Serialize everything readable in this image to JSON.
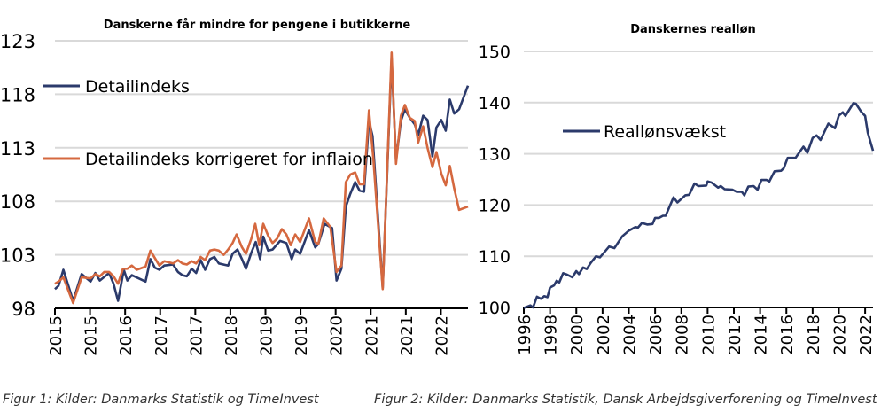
{
  "colors": {
    "navy": "#2b3a6b",
    "orange": "#d5683f",
    "grid": "#d9d9d9"
  },
  "chart_data": [
    {
      "type": "line",
      "title": "Danskerne får mindre for pengene i butikkerne",
      "xlabel": "",
      "ylabel": "",
      "x_units": "months since start of 2015",
      "xlim": [
        0,
        93
      ],
      "ylim": [
        98,
        123
      ],
      "yticks": [
        98,
        103,
        108,
        113,
        118,
        123
      ],
      "xtick_step_months": 7.9,
      "xtick_labels": [
        "2015",
        "2015",
        "2016",
        "2017",
        "2017",
        "2018",
        "2019",
        "2019",
        "2020",
        "2021",
        "2021",
        "2022"
      ],
      "grid": true,
      "legend": "top-left",
      "caption": "Figur 1: Kilder: Danmarks Statistik og TimeInvest",
      "series": [
        {
          "name": "Detailindeks",
          "color": "#2b3a6b",
          "points": [
            [
              0,
              99.8
            ],
            [
              0.8,
              100.1
            ],
            [
              1.9,
              101.6
            ],
            [
              4.1,
              98.7
            ],
            [
              6.0,
              101.2
            ],
            [
              8.0,
              100.5
            ],
            [
              9.1,
              101.3
            ],
            [
              10.1,
              100.6
            ],
            [
              12.2,
              101.3
            ],
            [
              13.2,
              100.3
            ],
            [
              14.2,
              98.7
            ],
            [
              15.5,
              101.6
            ],
            [
              16.3,
              100.6
            ],
            [
              17.3,
              101.1
            ],
            [
              19.4,
              100.7
            ],
            [
              20.4,
              100.5
            ],
            [
              21.5,
              102.6
            ],
            [
              22.5,
              101.8
            ],
            [
              23.5,
              101.6
            ],
            [
              24.6,
              102.0
            ],
            [
              26.6,
              102.1
            ],
            [
              27.7,
              101.4
            ],
            [
              28.7,
              101.1
            ],
            [
              29.7,
              101.0
            ],
            [
              30.8,
              101.7
            ],
            [
              31.8,
              101.3
            ],
            [
              32.8,
              102.5
            ],
            [
              33.8,
              101.6
            ],
            [
              34.9,
              102.6
            ],
            [
              35.9,
              102.8
            ],
            [
              36.9,
              102.2
            ],
            [
              39.0,
              102.0
            ],
            [
              40.0,
              103.1
            ],
            [
              41.1,
              103.5
            ],
            [
              42.1,
              102.6
            ],
            [
              43.0,
              101.7
            ],
            [
              44.2,
              103.2
            ],
            [
              45.2,
              104.2
            ],
            [
              46.2,
              102.6
            ],
            [
              46.9,
              104.7
            ],
            [
              48.0,
              103.4
            ],
            [
              49.0,
              103.5
            ],
            [
              50.7,
              104.3
            ],
            [
              52.1,
              104.1
            ],
            [
              53.3,
              102.6
            ],
            [
              54.1,
              103.5
            ],
            [
              55.2,
              103.1
            ],
            [
              57.2,
              105.3
            ],
            [
              58.6,
              103.7
            ],
            [
              59.3,
              104.0
            ],
            [
              60.7,
              105.9
            ],
            [
              62.4,
              105.5
            ],
            [
              63.4,
              100.6
            ],
            [
              64.5,
              101.7
            ],
            [
              65.5,
              107.5
            ],
            [
              66.5,
              108.7
            ],
            [
              67.6,
              109.8
            ],
            [
              68.6,
              109.0
            ],
            [
              69.6,
              108.9
            ],
            [
              70.7,
              115.5
            ],
            [
              71.5,
              114.1
            ],
            [
              73.8,
              99.9
            ],
            [
              75.8,
              121.3
            ],
            [
              76.8,
              111.8
            ],
            [
              77.9,
              115.5
            ],
            [
              78.8,
              116.6
            ],
            [
              79.9,
              115.8
            ],
            [
              81.0,
              115.2
            ],
            [
              81.8,
              114.2
            ],
            [
              82.9,
              116.0
            ],
            [
              83.9,
              115.6
            ],
            [
              85.0,
              112.2
            ],
            [
              85.9,
              114.9
            ],
            [
              87.0,
              115.6
            ],
            [
              88.0,
              114.6
            ],
            [
              88.9,
              117.5
            ],
            [
              89.9,
              116.2
            ],
            [
              91.0,
              116.6
            ],
            [
              93.0,
              118.8
            ]
          ]
        },
        {
          "name": "Detailindeks korrigeret for inflaion",
          "color": "#d5683f",
          "points": [
            [
              0,
              100.3
            ],
            [
              0.8,
              100.5
            ],
            [
              1.9,
              100.9
            ],
            [
              4.1,
              98.5
            ],
            [
              6.0,
              100.9
            ],
            [
              8.0,
              100.8
            ],
            [
              9.1,
              101.2
            ],
            [
              10.1,
              101.0
            ],
            [
              11.1,
              101.4
            ],
            [
              12.2,
              101.4
            ],
            [
              13.2,
              101.0
            ],
            [
              14.2,
              100.3
            ],
            [
              15.3,
              101.7
            ],
            [
              16.3,
              101.7
            ],
            [
              17.3,
              102.0
            ],
            [
              18.4,
              101.6
            ],
            [
              20.4,
              101.9
            ],
            [
              21.5,
              103.4
            ],
            [
              22.5,
              102.7
            ],
            [
              23.5,
              102.0
            ],
            [
              24.6,
              102.4
            ],
            [
              26.6,
              102.2
            ],
            [
              27.7,
              102.5
            ],
            [
              28.7,
              102.2
            ],
            [
              29.7,
              102.1
            ],
            [
              30.8,
              102.4
            ],
            [
              31.8,
              102.2
            ],
            [
              32.8,
              102.8
            ],
            [
              33.8,
              102.5
            ],
            [
              34.9,
              103.4
            ],
            [
              35.9,
              103.5
            ],
            [
              36.9,
              103.4
            ],
            [
              38.0,
              103.0
            ],
            [
              39.0,
              103.5
            ],
            [
              40.0,
              104.1
            ],
            [
              40.9,
              104.9
            ],
            [
              42.1,
              103.7
            ],
            [
              43.0,
              103.1
            ],
            [
              44.2,
              104.5
            ],
            [
              45.1,
              105.9
            ],
            [
              46.0,
              103.9
            ],
            [
              46.9,
              105.9
            ],
            [
              48.0,
              104.8
            ],
            [
              49.0,
              104.1
            ],
            [
              50.0,
              104.5
            ],
            [
              51.1,
              105.4
            ],
            [
              52.1,
              104.9
            ],
            [
              53.1,
              103.9
            ],
            [
              54.1,
              104.9
            ],
            [
              55.2,
              104.2
            ],
            [
              57.2,
              106.4
            ],
            [
              58.6,
              104.2
            ],
            [
              59.3,
              104.0
            ],
            [
              60.5,
              106.4
            ],
            [
              62.0,
              105.6
            ],
            [
              63.4,
              101.4
            ],
            [
              64.5,
              102.0
            ],
            [
              65.5,
              109.8
            ],
            [
              66.5,
              110.5
            ],
            [
              67.6,
              110.7
            ],
            [
              68.6,
              109.6
            ],
            [
              69.6,
              109.6
            ],
            [
              70.7,
              116.5
            ],
            [
              71.7,
              111.9
            ],
            [
              73.8,
              99.8
            ],
            [
              75.8,
              121.9
            ],
            [
              76.8,
              111.5
            ],
            [
              77.9,
              116.0
            ],
            [
              78.8,
              117.0
            ],
            [
              79.9,
              115.8
            ],
            [
              81.0,
              115.5
            ],
            [
              81.8,
              113.5
            ],
            [
              82.9,
              115.0
            ],
            [
              83.9,
              113.0
            ],
            [
              85.0,
              111.2
            ],
            [
              85.9,
              112.6
            ],
            [
              87.0,
              110.6
            ],
            [
              88.0,
              109.5
            ],
            [
              88.9,
              111.3
            ],
            [
              89.9,
              109.2
            ],
            [
              91.0,
              107.2
            ],
            [
              93.0,
              107.5
            ]
          ]
        }
      ]
    },
    {
      "type": "line",
      "title": "Danskernes realløn",
      "xlabel": "",
      "ylabel": "",
      "xlim": [
        1996,
        2022.6
      ],
      "ylim": [
        100,
        150
      ],
      "yticks": [
        100,
        110,
        120,
        130,
        140,
        150
      ],
      "xtick_labels": [
        "1996",
        "1998",
        "2000",
        "2002",
        "2004",
        "2006",
        "2008",
        "2010",
        "2012",
        "2014",
        "2016",
        "2018",
        "2020",
        "2022"
      ],
      "grid": true,
      "legend": "top-left",
      "caption": "Figur 2: Kilder: Danmarks Statistik, Dansk Arbejdsgiverforening og TimeInvest",
      "series": [
        {
          "name": "Reallønsvækst",
          "color": "#2b3a6b",
          "points": [
            [
              1996.0,
              99.9
            ],
            [
              1996.5,
              100.4
            ],
            [
              1996.7,
              100.0
            ],
            [
              1997.0,
              102.1
            ],
            [
              1997.3,
              101.7
            ],
            [
              1997.55,
              102.2
            ],
            [
              1997.8,
              102.0
            ],
            [
              1998.0,
              103.9
            ],
            [
              1998.3,
              104.3
            ],
            [
              1998.5,
              105.2
            ],
            [
              1998.7,
              104.9
            ],
            [
              1999.0,
              106.7
            ],
            [
              1999.3,
              106.4
            ],
            [
              1999.7,
              105.9
            ],
            [
              2000.0,
              107.1
            ],
            [
              2000.2,
              106.5
            ],
            [
              2000.5,
              107.8
            ],
            [
              2000.8,
              107.5
            ],
            [
              2001.1,
              108.7
            ],
            [
              2001.5,
              110.0
            ],
            [
              2001.8,
              109.8
            ],
            [
              2002.1,
              110.7
            ],
            [
              2002.5,
              111.9
            ],
            [
              2002.9,
              111.6
            ],
            [
              2003.5,
              113.9
            ],
            [
              2004.0,
              115.0
            ],
            [
              2004.5,
              115.7
            ],
            [
              2004.7,
              115.6
            ],
            [
              2005.0,
              116.5
            ],
            [
              2005.4,
              116.2
            ],
            [
              2005.8,
              116.3
            ],
            [
              2006.0,
              117.5
            ],
            [
              2006.3,
              117.5
            ],
            [
              2006.6,
              117.9
            ],
            [
              2006.8,
              117.9
            ],
            [
              2007.4,
              121.5
            ],
            [
              2007.7,
              120.5
            ],
            [
              2008.3,
              121.9
            ],
            [
              2008.6,
              122.0
            ],
            [
              2009.0,
              124.2
            ],
            [
              2009.3,
              123.7
            ],
            [
              2009.9,
              123.8
            ],
            [
              2010.0,
              124.6
            ],
            [
              2010.3,
              124.4
            ],
            [
              2010.8,
              123.4
            ],
            [
              2011.0,
              123.7
            ],
            [
              2011.3,
              123.1
            ],
            [
              2011.9,
              123.0
            ],
            [
              2012.2,
              122.6
            ],
            [
              2012.6,
              122.6
            ],
            [
              2012.8,
              121.9
            ],
            [
              2013.1,
              123.6
            ],
            [
              2013.5,
              123.7
            ],
            [
              2013.8,
              123.0
            ],
            [
              2014.1,
              124.9
            ],
            [
              2014.5,
              124.9
            ],
            [
              2014.7,
              124.6
            ],
            [
              2015.1,
              126.6
            ],
            [
              2015.6,
              126.7
            ],
            [
              2015.8,
              127.2
            ],
            [
              2016.1,
              129.2
            ],
            [
              2016.7,
              129.2
            ],
            [
              2017.1,
              130.7
            ],
            [
              2017.3,
              131.4
            ],
            [
              2017.6,
              130.2
            ],
            [
              2018.0,
              133.1
            ],
            [
              2018.3,
              133.6
            ],
            [
              2018.6,
              132.7
            ],
            [
              2019.2,
              135.9
            ],
            [
              2019.7,
              135.0
            ],
            [
              2020.0,
              137.5
            ],
            [
              2020.3,
              138.1
            ],
            [
              2020.5,
              137.4
            ],
            [
              2021.1,
              139.9
            ],
            [
              2021.3,
              139.8
            ],
            [
              2021.7,
              138.2
            ],
            [
              2022.0,
              137.4
            ],
            [
              2022.2,
              134.1
            ],
            [
              2022.6,
              130.6
            ]
          ]
        }
      ]
    }
  ]
}
